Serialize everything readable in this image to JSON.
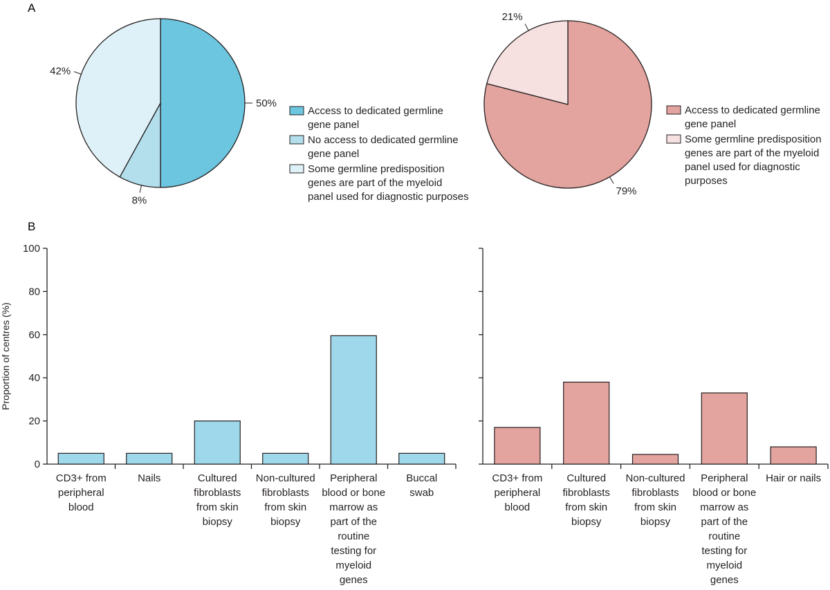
{
  "panels": {
    "a": "A",
    "b": "B"
  },
  "chart_data": [
    {
      "type": "pie",
      "panel": "A",
      "slices": [
        {
          "label": "Access to dedicated germline gene panel",
          "value": 50,
          "value_label": "50%",
          "color": "#6cc6df"
        },
        {
          "label": "No access to dedicated germline gene panel",
          "value": 8,
          "value_label": "8%",
          "color": "#b3dfec"
        },
        {
          "label": "Some germline predisposition genes are part of the myeloid panel used for diagnostic purposes",
          "value": 42,
          "value_label": "42%",
          "color": "#dff1f8"
        }
      ],
      "legend": [
        [
          "Access to dedicated germline",
          "gene panel"
        ],
        [
          "No access to dedicated germline",
          "gene panel"
        ],
        [
          "Some germline predisposition",
          "genes are part of the myeloid",
          "panel used for diagnostic purposes"
        ]
      ]
    },
    {
      "type": "pie",
      "panel": "A",
      "slices": [
        {
          "label": "Access to dedicated germline gene panel",
          "value": 79,
          "value_label": "79%",
          "color": "#e3a39e"
        },
        {
          "label": "Some germline predisposition genes are part of the myeloid panel used for diagnostic purposes",
          "value": 21,
          "value_label": "21%",
          "color": "#f6e1e0"
        }
      ],
      "legend": [
        [
          "Access to dedicated germline",
          "gene panel"
        ],
        [
          "Some germline predisposition",
          "genes are part of the myeloid",
          "panel used for diagnostic",
          "purposes"
        ]
      ]
    },
    {
      "type": "bar",
      "panel": "B",
      "color": "#9ed8ea",
      "ylabel": "Proportion of centres (%)",
      "ylim": [
        0,
        100
      ],
      "yticks": [
        0,
        20,
        40,
        60,
        80,
        100
      ],
      "categories": [
        [
          "CD3+ from",
          "peripheral",
          "blood"
        ],
        [
          "Nails"
        ],
        [
          "Cultured",
          "fibroblasts",
          "from skin",
          "biopsy"
        ],
        [
          "Non-cultured",
          "fibroblasts",
          "from skin",
          "biopsy"
        ],
        [
          "Peripheral",
          "blood or bone",
          "marrow as",
          "part of the",
          "routine",
          "testing for",
          "myeloid",
          "genes"
        ],
        [
          "Buccal",
          "swab"
        ]
      ],
      "values": [
        5,
        5,
        20,
        5,
        59.5,
        5
      ]
    },
    {
      "type": "bar",
      "panel": "B",
      "color": "#e3a39e",
      "ylim": [
        0,
        100
      ],
      "yticks": [
        0,
        20,
        40,
        60,
        80,
        100
      ],
      "categories": [
        [
          "CD3+ from",
          "peripheral",
          "blood"
        ],
        [
          "Cultured",
          "fibroblasts",
          "from skin",
          "biopsy"
        ],
        [
          "Non-cultured",
          "fibroblasts",
          "from skin",
          "biopsy"
        ],
        [
          "Peripheral",
          "blood or bone",
          "marrow as",
          "part of the",
          "routine",
          "testing for",
          "myeloid",
          "genes"
        ],
        [
          "Hair or nails"
        ]
      ],
      "values": [
        17,
        38,
        4.5,
        33,
        8
      ]
    }
  ]
}
